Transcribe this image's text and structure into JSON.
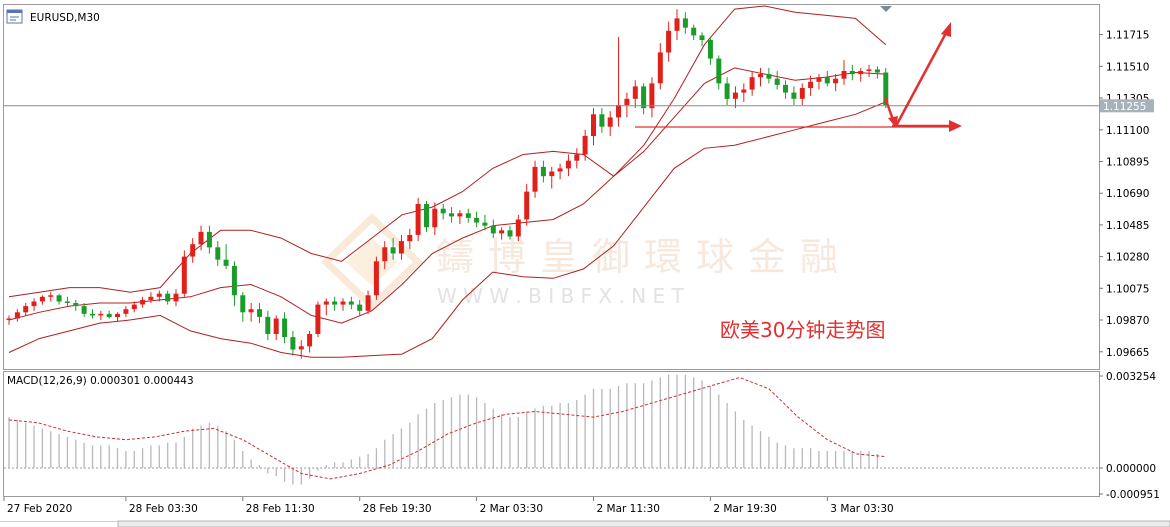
{
  "window": {
    "symbol_label": "EURUSD,M30",
    "icon_name": "window-icon"
  },
  "price_scale": {
    "labels": [
      "1.11715",
      "1.11510",
      "1.11305",
      "1.11100",
      "1.10895",
      "1.10690",
      "1.10485",
      "1.10280",
      "1.10075",
      "1.09870",
      "1.09665"
    ],
    "current_price": "1.11255"
  },
  "macd": {
    "label": "MACD(12,26,9) 0.000301 0.000443",
    "scale_labels": [
      "0.003254",
      "0.000000",
      "-0.000951"
    ]
  },
  "time_axis": {
    "labels": [
      "27 Feb 2020",
      "28 Feb 03:30",
      "28 Feb 11:30",
      "28 Feb 19:30",
      "2 Mar 03:30",
      "2 Mar 11:30",
      "2 Mar 19:30",
      "3 Mar 03:30"
    ]
  },
  "watermark": {
    "chinese": "鑄博皇御環球金融",
    "url": "W W W . B I B F X . N E T"
  },
  "annotation": "欧美30分钟走势图",
  "colors": {
    "bull": "#e0201b",
    "bear": "#1a9c2a",
    "bands": "#b02020",
    "annotation": "#e03030",
    "macd_hist": "#b8b8b8",
    "macd_signal": "#c83030"
  },
  "chart_data": {
    "type": "candlestick",
    "instrument": "EURUSD",
    "timeframe": "M30",
    "ylim": [
      1.0956,
      1.119
    ],
    "current_price": 1.11255,
    "support_level": 1.1112,
    "candles": [
      [
        1.0987,
        1.099,
        1.0984,
        1.0988
      ],
      [
        1.0988,
        1.0994,
        1.0986,
        1.0992
      ],
      [
        1.0992,
        1.0998,
        1.099,
        1.0996
      ],
      [
        1.0996,
        1.1001,
        1.0993,
        1.0999
      ],
      [
        1.0999,
        1.1003,
        1.0997,
        1.1002
      ],
      [
        1.1002,
        1.1005,
        1.0999,
        1.1003
      ],
      [
        1.1003,
        1.1004,
        1.0997,
        1.0999
      ],
      [
        1.0999,
        1.1002,
        1.0996,
        1.0998
      ],
      [
        1.0998,
        1.1,
        1.0993,
        1.0996
      ],
      [
        1.0996,
        1.0998,
        1.0989,
        1.0991
      ],
      [
        1.0991,
        1.0994,
        1.0988,
        1.099
      ],
      [
        1.099,
        1.0993,
        1.0987,
        1.0991
      ],
      [
        1.0991,
        1.0993,
        1.0988,
        1.0989
      ],
      [
        1.0989,
        1.0992,
        1.0986,
        1.0991
      ],
      [
        1.0991,
        1.0996,
        1.0989,
        1.0994
      ],
      [
        1.0994,
        1.0999,
        1.0992,
        1.0997
      ],
      [
        1.0997,
        1.1002,
        1.0995,
        1.1
      ],
      [
        1.1,
        1.1005,
        1.0998,
        1.1002
      ],
      [
        1.1002,
        1.1006,
        1.0999,
        1.1004
      ],
      [
        1.1004,
        1.1006,
        1.0997,
        1.0999
      ],
      [
        1.0999,
        1.1007,
        1.0996,
        1.1004
      ],
      [
        1.1004,
        1.1032,
        1.1002,
        1.1028
      ],
      [
        1.1028,
        1.104,
        1.1024,
        1.1036
      ],
      [
        1.1036,
        1.1048,
        1.1032,
        1.1044
      ],
      [
        1.1044,
        1.1048,
        1.103,
        1.1034
      ],
      [
        1.1034,
        1.1038,
        1.1022,
        1.1026
      ],
      [
        1.1026,
        1.1036,
        1.102,
        1.1022
      ],
      [
        1.1022,
        1.1025,
        1.0996,
        1.1003
      ],
      [
        1.1003,
        1.1005,
        1.0986,
        1.0992
      ],
      [
        1.0992,
        1.0998,
        1.0986,
        1.0994
      ],
      [
        1.0994,
        1.0998,
        1.0985,
        1.0989
      ],
      [
        1.0989,
        1.0993,
        1.0974,
        1.0978
      ],
      [
        1.0978,
        1.099,
        1.0974,
        1.0988
      ],
      [
        1.0988,
        1.0992,
        1.0972,
        1.0976
      ],
      [
        1.0976,
        1.098,
        1.0964,
        1.0968
      ],
      [
        1.0968,
        1.0974,
        1.0962,
        1.097
      ],
      [
        1.097,
        1.098,
        1.0966,
        1.0978
      ],
      [
        1.0978,
        1.0999,
        1.0976,
        1.0997
      ],
      [
        1.0997,
        1.1001,
        1.099,
        1.0999
      ],
      [
        1.0999,
        1.1002,
        1.0993,
        1.0997
      ],
      [
        1.0997,
        1.1001,
        1.0993,
        1.0999
      ],
      [
        1.0999,
        1.1002,
        1.0994,
        1.0997
      ],
      [
        1.0997,
        1.1,
        1.099,
        1.0993
      ],
      [
        1.0993,
        1.1006,
        1.0991,
        1.1003
      ],
      [
        1.1003,
        1.1028,
        1.1,
        1.1025
      ],
      [
        1.1025,
        1.1038,
        1.102,
        1.1034
      ],
      [
        1.1034,
        1.104,
        1.1026,
        1.103
      ],
      [
        1.103,
        1.1042,
        1.1026,
        1.1038
      ],
      [
        1.1038,
        1.1046,
        1.1033,
        1.1042
      ],
      [
        1.1042,
        1.1066,
        1.1038,
        1.1062
      ],
      [
        1.1062,
        1.1064,
        1.1044,
        1.1047
      ],
      [
        1.1047,
        1.1063,
        1.1042,
        1.1059
      ],
      [
        1.1059,
        1.1062,
        1.1052,
        1.1056
      ],
      [
        1.1056,
        1.106,
        1.105,
        1.1054
      ],
      [
        1.1054,
        1.1058,
        1.1049,
        1.1056
      ],
      [
        1.1056,
        1.1059,
        1.105,
        1.1053
      ],
      [
        1.1053,
        1.1057,
        1.1047,
        1.105
      ],
      [
        1.105,
        1.1055,
        1.1045,
        1.1048
      ],
      [
        1.1048,
        1.1052,
        1.104,
        1.1043
      ],
      [
        1.1043,
        1.1047,
        1.1039,
        1.1045
      ],
      [
        1.1045,
        1.1048,
        1.1039,
        1.1041
      ],
      [
        1.1041,
        1.1055,
        1.1038,
        1.1052
      ],
      [
        1.1052,
        1.1075,
        1.1048,
        1.107
      ],
      [
        1.107,
        1.109,
        1.1066,
        1.1086
      ],
      [
        1.1086,
        1.109,
        1.1076,
        1.108
      ],
      [
        1.108,
        1.1086,
        1.1072,
        1.1083
      ],
      [
        1.1083,
        1.1088,
        1.1078,
        1.1085
      ],
      [
        1.1085,
        1.1094,
        1.108,
        1.109
      ],
      [
        1.109,
        1.1098,
        1.1085,
        1.1094
      ],
      [
        1.1094,
        1.111,
        1.109,
        1.1106
      ],
      [
        1.1106,
        1.1124,
        1.11,
        1.112
      ],
      [
        1.112,
        1.1124,
        1.1108,
        1.1112
      ],
      [
        1.1112,
        1.1122,
        1.1106,
        1.1118
      ],
      [
        1.1118,
        1.117,
        1.1112,
        1.1126
      ],
      [
        1.1126,
        1.1134,
        1.1118,
        1.113
      ],
      [
        1.113,
        1.1142,
        1.1124,
        1.1138
      ],
      [
        1.1138,
        1.114,
        1.112,
        1.1124
      ],
      [
        1.1124,
        1.1144,
        1.1118,
        1.114
      ],
      [
        1.114,
        1.1166,
        1.1136,
        1.116
      ],
      [
        1.116,
        1.118,
        1.1154,
        1.1174
      ],
      [
        1.1174,
        1.1188,
        1.1168,
        1.1182
      ],
      [
        1.1182,
        1.1186,
        1.1172,
        1.1176
      ],
      [
        1.1176,
        1.1178,
        1.1168,
        1.1171
      ],
      [
        1.1171,
        1.1173,
        1.1164,
        1.1168
      ],
      [
        1.1168,
        1.117,
        1.1152,
        1.1156
      ],
      [
        1.1156,
        1.1158,
        1.1136,
        1.114
      ],
      [
        1.114,
        1.1144,
        1.1126,
        1.113
      ],
      [
        1.113,
        1.1138,
        1.1124,
        1.1134
      ],
      [
        1.1134,
        1.114,
        1.1128,
        1.1136
      ],
      [
        1.1136,
        1.1148,
        1.1132,
        1.1144
      ],
      [
        1.1144,
        1.115,
        1.1138,
        1.1146
      ],
      [
        1.1146,
        1.115,
        1.114,
        1.1143
      ],
      [
        1.1143,
        1.1148,
        1.1136,
        1.1139
      ],
      [
        1.1139,
        1.1142,
        1.113,
        1.1134
      ],
      [
        1.1134,
        1.1138,
        1.1126,
        1.113
      ],
      [
        1.113,
        1.114,
        1.1126,
        1.1137
      ],
      [
        1.1137,
        1.1145,
        1.1132,
        1.1141
      ],
      [
        1.1141,
        1.1146,
        1.1136,
        1.1144
      ],
      [
        1.1144,
        1.1148,
        1.1138,
        1.114
      ],
      [
        1.114,
        1.1146,
        1.1135,
        1.1143
      ],
      [
        1.1143,
        1.1155,
        1.1139,
        1.1148
      ],
      [
        1.1148,
        1.1152,
        1.1142,
        1.1146
      ],
      [
        1.1146,
        1.115,
        1.1141,
        1.1148
      ],
      [
        1.1148,
        1.1152,
        1.1144,
        1.1149
      ],
      [
        1.1149,
        1.1151,
        1.1143,
        1.1147
      ],
      [
        1.1147,
        1.115,
        1.1124,
        1.1126
      ]
    ],
    "bb_upper": [
      1.1002,
      1.1005,
      1.1008,
      1.1008,
      1.1005,
      1.1008,
      1.103,
      1.1045,
      1.1045,
      1.104,
      1.103,
      1.1025,
      1.104,
      1.1055,
      1.106,
      1.107,
      1.1085,
      1.1094,
      1.1096,
      1.1094,
      1.108,
      1.11,
      1.113,
      1.1165,
      1.1188,
      1.119,
      1.1186,
      1.1184,
      1.1182,
      1.1165
    ],
    "bb_middle": [
      1.0987,
      1.0992,
      1.0996,
      1.0998,
      1.0998,
      1.1,
      1.1002,
      1.1008,
      1.101,
      1.1002,
      1.099,
      1.0985,
      1.0993,
      1.101,
      1.103,
      1.104,
      1.1048,
      1.105,
      1.1052,
      1.1062,
      1.108,
      1.1096,
      1.1118,
      1.114,
      1.115,
      1.1146,
      1.1142,
      1.1144,
      1.1147,
      1.1146
    ],
    "bb_lower": [
      1.0966,
      1.0975,
      1.098,
      1.0985,
      1.0987,
      1.099,
      1.098,
      1.0975,
      1.0972,
      1.0966,
      1.0963,
      1.0963,
      1.0964,
      1.0965,
      1.0975,
      1.1,
      1.1018,
      1.1015,
      1.1014,
      1.102,
      1.1035,
      1.106,
      1.1085,
      1.1098,
      1.11,
      1.1105,
      1.111,
      1.1115,
      1.112,
      1.1128
    ],
    "macd_histogram": [
      0.0018,
      0.0017,
      0.0016,
      0.0015,
      0.0014,
      0.0013,
      0.0012,
      0.0011,
      0.001,
      0.0009,
      0.0008,
      0.0008,
      0.0008,
      0.0007,
      0.0006,
      0.0006,
      0.0007,
      0.0008,
      0.0008,
      0.0009,
      0.0009,
      0.0011,
      0.0014,
      0.0015,
      0.0016,
      0.0015,
      0.0013,
      0.001,
      0.0006,
      0.0003,
      0.0001,
      -0.0002,
      -0.0003,
      -0.0005,
      -0.0006,
      -0.0006,
      -0.0004,
      -0.0001,
      0.0001,
      0.0002,
      0.0002,
      0.0003,
      0.0004,
      0.0005,
      0.0007,
      0.001,
      0.0012,
      0.0014,
      0.0016,
      0.0019,
      0.0021,
      0.0023,
      0.0024,
      0.0025,
      0.0026,
      0.0026,
      0.0025,
      0.0023,
      0.0021,
      0.0019,
      0.0018,
      0.0018,
      0.002,
      0.0021,
      0.0022,
      0.0022,
      0.0023,
      0.0023,
      0.0024,
      0.0026,
      0.0028,
      0.0028,
      0.0028,
      0.0029,
      0.003,
      0.003,
      0.003,
      0.0031,
      0.0032,
      0.0033,
      0.0033,
      0.0033,
      0.0032,
      0.0031,
      0.0029,
      0.0026,
      0.0023,
      0.002,
      0.0017,
      0.0015,
      0.0013,
      0.0011,
      0.0009,
      0.0008,
      0.0007,
      0.0007,
      0.0007,
      0.0006,
      0.0006,
      0.0006,
      0.0006,
      0.0006,
      0.0006,
      0.0006,
      0.0005
    ],
    "macd_signal": [
      0.0017,
      0.0016,
      0.0013,
      0.0011,
      0.001,
      0.0011,
      0.0013,
      0.0014,
      0.001,
      0.0004,
      -0.0002,
      -0.0004,
      -0.0002,
      0.0001,
      0.0006,
      0.0012,
      0.0016,
      0.0019,
      0.002,
      0.0019,
      0.0018,
      0.002,
      0.0023,
      0.0026,
      0.0029,
      0.0032,
      0.0028,
      0.0018,
      0.001,
      0.0005,
      0.0004
    ]
  }
}
